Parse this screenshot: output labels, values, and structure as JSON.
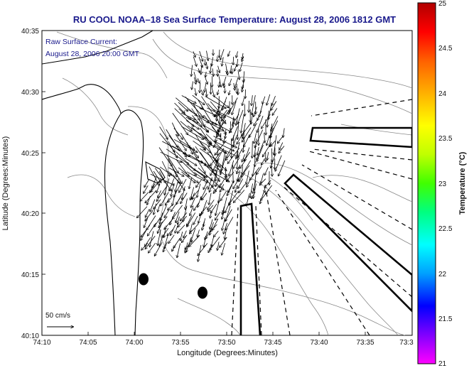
{
  "title": "RU COOL  NOAA–18  Sea Surface Temperature:  August 28, 2006 1812 GMT",
  "annotation": {
    "line1": "Raw Surface Current:",
    "line2": "August 28, 2006 20:00 GMT"
  },
  "scale_label": "50 cm/s",
  "x_axis": {
    "label": "Longitude (Degrees:Minutes)",
    "ticks": [
      "74:10",
      "74:05",
      "74:00",
      "73:55",
      "73:50",
      "73:45",
      "73:40",
      "73:35",
      "73:3"
    ]
  },
  "y_axis": {
    "label": "Latitude (Degrees:Minutes)",
    "ticks": [
      "40:35",
      "40:30",
      "40:25",
      "40:20",
      "40:15",
      "40:10"
    ]
  },
  "colorbar": {
    "label": "Temperature (°C)",
    "ticks": [
      "25",
      "24.5",
      "24",
      "23.5",
      "23",
      "22.5",
      "22",
      "21.5",
      "21"
    ],
    "min": 21,
    "max": 25,
    "colors": [
      "#ff00ff",
      "#8000ff",
      "#0000ff",
      "#00a0ff",
      "#00ffff",
      "#00ff80",
      "#40ff00",
      "#c0ff00",
      "#ffff00",
      "#ffb000",
      "#ff6000",
      "#ff0000",
      "#b00000"
    ]
  },
  "colors": {
    "title": "#1a1a8c",
    "annotation": "#1a1a8c",
    "coast": "#000000",
    "contour": "#777777"
  }
}
